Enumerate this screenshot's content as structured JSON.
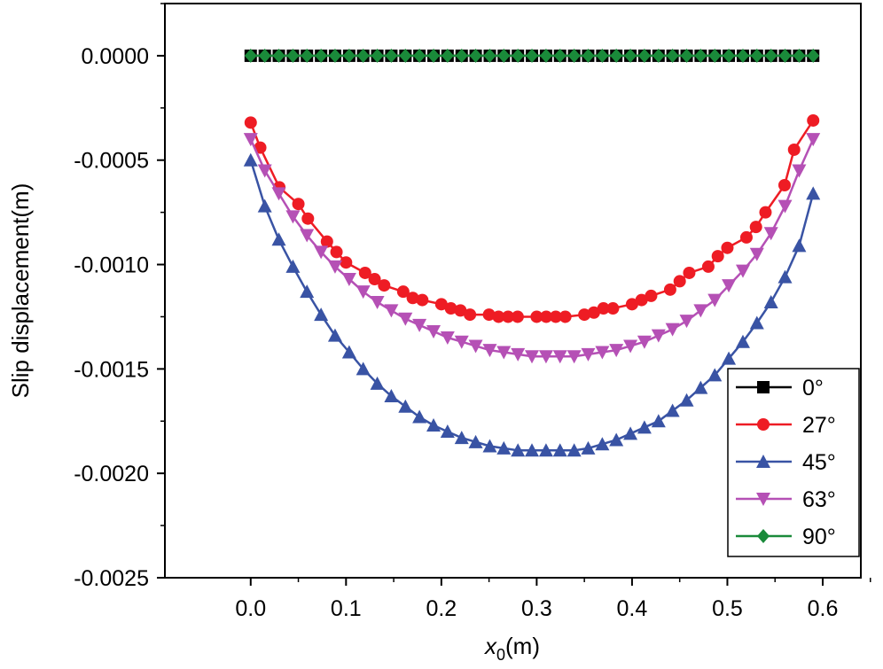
{
  "chart_data": {
    "type": "line",
    "xlabel_main": "x",
    "xlabel_sub": "0",
    "xlabel_unit": "(m)",
    "ylabel": "Slip displacement(m)",
    "xlim": [
      -0.09,
      0.64
    ],
    "ylim": [
      -0.0025,
      0.00025
    ],
    "x_ticks": [
      0.0,
      0.1,
      0.2,
      0.3,
      0.4,
      0.5,
      0.6
    ],
    "x_tick_labels": [
      "0.0",
      "0.1",
      "0.2",
      "0.3",
      "0.4",
      "0.5",
      "0.6"
    ],
    "y_ticks": [
      0.0,
      -0.0005,
      -0.001,
      -0.0015,
      -0.002,
      -0.0025
    ],
    "y_tick_labels": [
      "0.0000",
      "-0.0005",
      "-0.0010",
      "-0.0015",
      "-0.0020",
      "-0.0025"
    ],
    "grid": false,
    "legend_position": "bottom-right",
    "series": [
      {
        "name": "0°",
        "color": "#000000",
        "marker": "square",
        "x": [
          0.0,
          0.0148,
          0.0295,
          0.0443,
          0.059,
          0.0738,
          0.0885,
          0.1033,
          0.118,
          0.1328,
          0.1475,
          0.1623,
          0.177,
          0.1918,
          0.2065,
          0.2213,
          0.236,
          0.2508,
          0.2655,
          0.2803,
          0.295,
          0.3098,
          0.3245,
          0.3393,
          0.354,
          0.3688,
          0.3835,
          0.3983,
          0.413,
          0.4278,
          0.4425,
          0.4573,
          0.472,
          0.4868,
          0.5015,
          0.5163,
          0.531,
          0.5458,
          0.5605,
          0.5753,
          0.59
        ],
        "y": [
          0.0,
          0.0,
          0.0,
          0.0,
          0.0,
          0.0,
          0.0,
          0.0,
          0.0,
          0.0,
          0.0,
          0.0,
          0.0,
          0.0,
          0.0,
          0.0,
          0.0,
          0.0,
          0.0,
          0.0,
          0.0,
          0.0,
          0.0,
          0.0,
          0.0,
          0.0,
          0.0,
          0.0,
          0.0,
          0.0,
          0.0,
          0.0,
          0.0,
          0.0,
          0.0,
          0.0,
          0.0,
          0.0,
          0.0,
          0.0,
          0.0
        ]
      },
      {
        "name": "27°",
        "color": "#ee1c24",
        "marker": "circle",
        "x": [
          0.0,
          0.01,
          0.03,
          0.05,
          0.06,
          0.08,
          0.09,
          0.1,
          0.12,
          0.13,
          0.14,
          0.16,
          0.17,
          0.18,
          0.2,
          0.21,
          0.22,
          0.23,
          0.25,
          0.26,
          0.27,
          0.28,
          0.3,
          0.31,
          0.32,
          0.33,
          0.35,
          0.36,
          0.37,
          0.38,
          0.4,
          0.41,
          0.42,
          0.44,
          0.45,
          0.46,
          0.48,
          0.49,
          0.5,
          0.52,
          0.53,
          0.54,
          0.56,
          0.57,
          0.59
        ],
        "y": [
          -0.00032,
          -0.00044,
          -0.00063,
          -0.00071,
          -0.00078,
          -0.00089,
          -0.00094,
          -0.00099,
          -0.00104,
          -0.00107,
          -0.0011,
          -0.00113,
          -0.00116,
          -0.00117,
          -0.00119,
          -0.00121,
          -0.00122,
          -0.00124,
          -0.00124,
          -0.00125,
          -0.00125,
          -0.00125,
          -0.00125,
          -0.00125,
          -0.00125,
          -0.00125,
          -0.00124,
          -0.00123,
          -0.00121,
          -0.00121,
          -0.00119,
          -0.00117,
          -0.00115,
          -0.00112,
          -0.00108,
          -0.00104,
          -0.00101,
          -0.00096,
          -0.00092,
          -0.00087,
          -0.00082,
          -0.00075,
          -0.00062,
          -0.00045,
          -0.00031
        ]
      },
      {
        "name": "45°",
        "color": "#3953a4",
        "marker": "triangle-up",
        "x": [
          0.0,
          0.0148,
          0.0295,
          0.0443,
          0.059,
          0.0738,
          0.0885,
          0.1033,
          0.118,
          0.1328,
          0.1475,
          0.1623,
          0.177,
          0.1918,
          0.2065,
          0.2213,
          0.236,
          0.2508,
          0.2655,
          0.2803,
          0.295,
          0.3098,
          0.3245,
          0.3393,
          0.354,
          0.3688,
          0.3835,
          0.3983,
          0.413,
          0.4278,
          0.4425,
          0.4573,
          0.472,
          0.4868,
          0.5015,
          0.5163,
          0.531,
          0.5458,
          0.5605,
          0.5753,
          0.59
        ],
        "y": [
          -0.0005,
          -0.00072,
          -0.00088,
          -0.00101,
          -0.00113,
          -0.00124,
          -0.00134,
          -0.00142,
          -0.0015,
          -0.00157,
          -0.00163,
          -0.00168,
          -0.00173,
          -0.00177,
          -0.0018,
          -0.00183,
          -0.00185,
          -0.00187,
          -0.00188,
          -0.00189,
          -0.00189,
          -0.00189,
          -0.00189,
          -0.00189,
          -0.00188,
          -0.00186,
          -0.00184,
          -0.00181,
          -0.00178,
          -0.00175,
          -0.0017,
          -0.00165,
          -0.00159,
          -0.00153,
          -0.00145,
          -0.00137,
          -0.00128,
          -0.00118,
          -0.00106,
          -0.00091,
          -0.00066
        ]
      },
      {
        "name": "63°",
        "color": "#b550b5",
        "marker": "triangle-down",
        "x": [
          0.0,
          0.0148,
          0.0295,
          0.0443,
          0.059,
          0.0738,
          0.0885,
          0.1033,
          0.118,
          0.1328,
          0.1475,
          0.1623,
          0.177,
          0.1918,
          0.2065,
          0.2213,
          0.236,
          0.2508,
          0.2655,
          0.2803,
          0.295,
          0.3098,
          0.3245,
          0.3393,
          0.354,
          0.3688,
          0.3835,
          0.3983,
          0.413,
          0.4278,
          0.4425,
          0.4573,
          0.472,
          0.4868,
          0.5015,
          0.5163,
          0.531,
          0.5458,
          0.5605,
          0.5753,
          0.59
        ],
        "y": [
          -0.0004,
          -0.00055,
          -0.00066,
          -0.00077,
          -0.00086,
          -0.00094,
          -0.00101,
          -0.00107,
          -0.00113,
          -0.00118,
          -0.00122,
          -0.00126,
          -0.00129,
          -0.00132,
          -0.00135,
          -0.00137,
          -0.00139,
          -0.00141,
          -0.00142,
          -0.00143,
          -0.00144,
          -0.00144,
          -0.00144,
          -0.00144,
          -0.00143,
          -0.00142,
          -0.00141,
          -0.00139,
          -0.00137,
          -0.00134,
          -0.00131,
          -0.00127,
          -0.00122,
          -0.00117,
          -0.0011,
          -0.00103,
          -0.00095,
          -0.00085,
          -0.00072,
          -0.00055,
          -0.0004
        ]
      },
      {
        "name": "90°",
        "color": "#1a8a3a",
        "marker": "diamond",
        "x": [
          0.0,
          0.0148,
          0.0295,
          0.0443,
          0.059,
          0.0738,
          0.0885,
          0.1033,
          0.118,
          0.1328,
          0.1475,
          0.1623,
          0.177,
          0.1918,
          0.2065,
          0.2213,
          0.236,
          0.2508,
          0.2655,
          0.2803,
          0.295,
          0.3098,
          0.3245,
          0.3393,
          0.354,
          0.3688,
          0.3835,
          0.3983,
          0.413,
          0.4278,
          0.4425,
          0.4573,
          0.472,
          0.4868,
          0.5015,
          0.5163,
          0.531,
          0.5458,
          0.5605,
          0.5753,
          0.59
        ],
        "y": [
          0.0,
          0.0,
          0.0,
          0.0,
          0.0,
          0.0,
          0.0,
          0.0,
          0.0,
          0.0,
          0.0,
          0.0,
          0.0,
          0.0,
          0.0,
          0.0,
          0.0,
          0.0,
          0.0,
          0.0,
          0.0,
          0.0,
          0.0,
          0.0,
          0.0,
          0.0,
          0.0,
          0.0,
          0.0,
          0.0,
          0.0,
          0.0,
          0.0,
          0.0,
          0.0,
          0.0,
          0.0,
          0.0,
          0.0,
          0.0,
          0.0
        ]
      }
    ]
  }
}
